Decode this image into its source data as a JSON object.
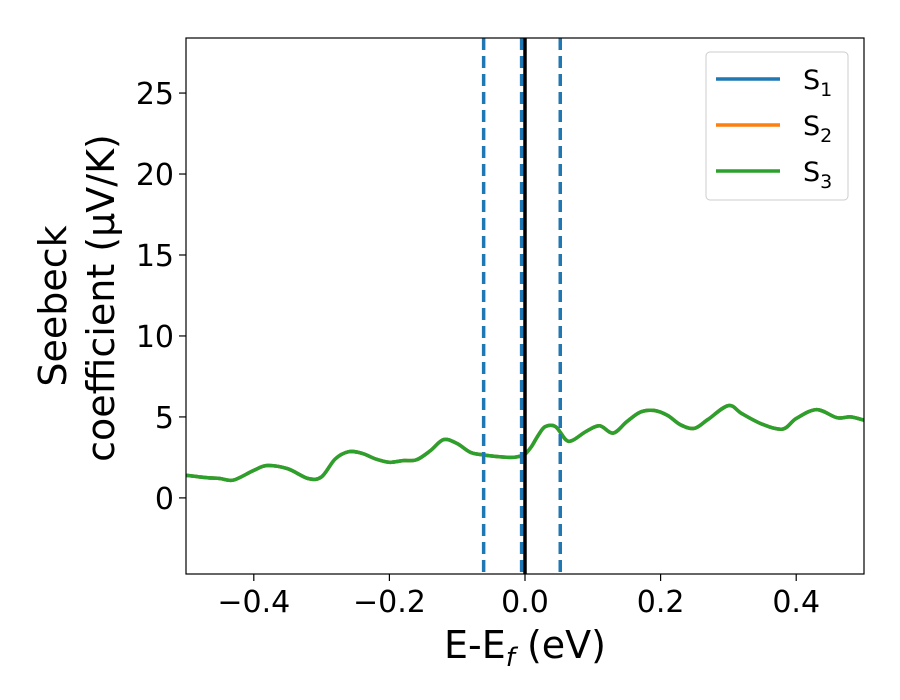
{
  "chart_data": {
    "type": "line",
    "xlabel": "E-E",
    "xlabel_sub": "f",
    "xlabel_suffix": " (eV)",
    "ylabel_line1": "Seebeck",
    "ylabel_line2": "coefficient  (μV/K)",
    "xlim": [
      -0.5,
      0.5
    ],
    "ylim": [
      -4.7,
      28.4
    ],
    "xticks": [
      {
        "value": -0.4,
        "label": "−0.4"
      },
      {
        "value": -0.2,
        "label": "−0.2"
      },
      {
        "value": 0.0,
        "label": "0.0"
      },
      {
        "value": 0.2,
        "label": "0.2"
      },
      {
        "value": 0.4,
        "label": "0.4"
      }
    ],
    "yticks": [
      {
        "value": 0,
        "label": "0"
      },
      {
        "value": 5,
        "label": "5"
      },
      {
        "value": 10,
        "label": "10"
      },
      {
        "value": 15,
        "label": "15"
      },
      {
        "value": 20,
        "label": "20"
      },
      {
        "value": 25,
        "label": "25"
      }
    ],
    "grid": false,
    "legend_position": "top-right",
    "x": [
      -0.5,
      -0.47,
      -0.45,
      -0.43,
      -0.4,
      -0.38,
      -0.35,
      -0.32,
      -0.3,
      -0.28,
      -0.26,
      -0.24,
      -0.22,
      -0.2,
      -0.18,
      -0.16,
      -0.14,
      -0.12,
      -0.1,
      -0.08,
      -0.06,
      -0.04,
      -0.02,
      -0.01,
      0.0,
      0.01,
      0.02,
      0.03,
      0.045,
      0.06,
      0.07,
      0.09,
      0.11,
      0.13,
      0.15,
      0.17,
      0.19,
      0.21,
      0.23,
      0.25,
      0.27,
      0.3,
      0.32,
      0.35,
      0.38,
      0.4,
      0.43,
      0.46,
      0.48,
      0.5
    ],
    "series": [
      {
        "name": "S",
        "sub": "1",
        "color": "#1f77b4",
        "values": [
          1.4,
          1.25,
          1.2,
          1.1,
          1.7,
          2.0,
          1.8,
          1.2,
          1.3,
          2.4,
          2.85,
          2.75,
          2.4,
          2.2,
          2.3,
          2.35,
          2.9,
          3.6,
          3.35,
          2.8,
          2.65,
          2.55,
          2.5,
          2.55,
          2.7,
          3.2,
          3.9,
          4.4,
          4.4,
          3.6,
          3.55,
          4.1,
          4.45,
          4.0,
          4.7,
          5.3,
          5.4,
          5.1,
          4.5,
          4.3,
          4.85,
          5.7,
          5.2,
          4.55,
          4.25,
          4.9,
          5.45,
          4.95,
          5.0,
          4.8
        ]
      },
      {
        "name": "S",
        "sub": "2",
        "color": "#ff7f0e",
        "values": [
          1.4,
          1.25,
          1.2,
          1.1,
          1.7,
          2.0,
          1.8,
          1.2,
          1.3,
          2.4,
          2.85,
          2.75,
          2.4,
          2.2,
          2.3,
          2.35,
          2.9,
          3.6,
          3.35,
          2.8,
          2.65,
          2.55,
          2.5,
          2.55,
          2.7,
          3.2,
          3.9,
          4.4,
          4.4,
          3.6,
          3.55,
          4.1,
          4.45,
          4.0,
          4.7,
          5.3,
          5.4,
          5.1,
          4.5,
          4.3,
          4.85,
          5.7,
          5.2,
          4.55,
          4.25,
          4.9,
          5.45,
          4.95,
          5.0,
          4.8
        ]
      },
      {
        "name": "S",
        "sub": "3",
        "color": "#2ca02c",
        "values": [
          1.4,
          1.25,
          1.2,
          1.1,
          1.7,
          2.0,
          1.8,
          1.2,
          1.3,
          2.4,
          2.85,
          2.75,
          2.4,
          2.2,
          2.3,
          2.35,
          2.9,
          3.6,
          3.35,
          2.8,
          2.65,
          2.55,
          2.5,
          2.55,
          2.7,
          3.2,
          3.9,
          4.4,
          4.4,
          3.6,
          3.55,
          4.1,
          4.45,
          4.0,
          4.7,
          5.3,
          5.4,
          5.1,
          4.5,
          4.3,
          4.85,
          5.7,
          5.2,
          4.55,
          4.25,
          4.9,
          5.45,
          4.95,
          5.0,
          4.8
        ]
      }
    ],
    "vlines": [
      {
        "x": -0.061,
        "style": "dashed",
        "color": "#1f77b4"
      },
      {
        "x": -0.005,
        "style": "dashed",
        "color": "#1f77b4"
      },
      {
        "x": 0.0,
        "style": "solid",
        "color": "#000000"
      },
      {
        "x": 0.052,
        "style": "dashed",
        "color": "#1f77b4"
      }
    ]
  }
}
